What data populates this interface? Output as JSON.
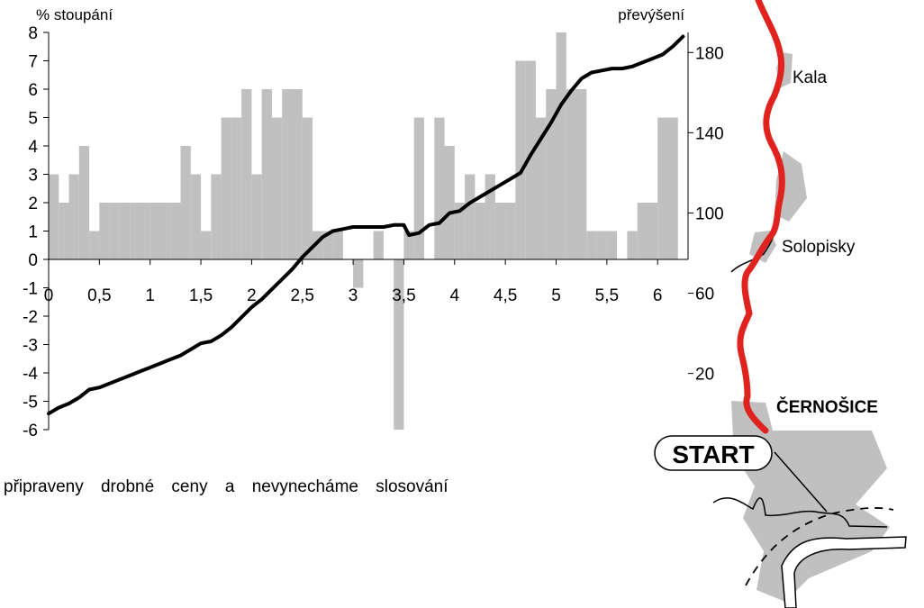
{
  "chart_data": {
    "type": "bar+line",
    "xlabel": "",
    "y_left_label": "% stoupání",
    "y_right_label": "převýšení",
    "x_ticks": [
      "0",
      "0,5",
      "1",
      "1,5",
      "2",
      "2,5",
      "3",
      "3,5",
      "4",
      "4,5",
      "5",
      "5,5",
      "6"
    ],
    "y_left_ticks": [
      "8",
      "7",
      "6",
      "5",
      "4",
      "3",
      "2",
      "1",
      "0",
      "-1",
      "-2",
      "-3",
      "-4",
      "-5",
      "-6"
    ],
    "y_right_ticks": [
      "180",
      "140",
      "100",
      "60",
      "20"
    ],
    "xlim": [
      0,
      6.3
    ],
    "y_left_lim": [
      -6,
      8
    ],
    "y_right_lim": [
      -8,
      190
    ],
    "bar_width": 0.1,
    "series": [
      {
        "kind": "bar",
        "color": "#c0c0c0",
        "x": [
          0.0,
          0.1,
          0.2,
          0.3,
          0.4,
          0.5,
          0.6,
          0.7,
          0.8,
          0.9,
          1.0,
          1.1,
          1.2,
          1.3,
          1.4,
          1.5,
          1.6,
          1.7,
          1.8,
          1.9,
          2.0,
          2.1,
          2.2,
          2.3,
          2.4,
          2.5,
          2.6,
          2.7,
          2.8,
          2.9,
          3.0,
          3.1,
          3.2,
          3.3,
          3.4,
          3.5,
          3.6,
          3.7,
          3.8,
          3.9,
          4.0,
          4.1,
          4.2,
          4.3,
          4.4,
          4.5,
          4.6,
          4.7,
          4.8,
          4.9,
          5.0,
          5.1,
          5.2,
          5.3,
          5.4,
          5.5,
          5.6,
          5.7,
          5.8,
          5.9,
          6.0,
          6.1,
          6.2
        ],
        "values": [
          3,
          2,
          3,
          4,
          1,
          2,
          2,
          2,
          2,
          2,
          2,
          2,
          2,
          4,
          3,
          1,
          3,
          5,
          5,
          6,
          3,
          6,
          5,
          6,
          6,
          5,
          1,
          1,
          1,
          0,
          -1,
          0,
          1,
          0,
          -6,
          1,
          5,
          0,
          5,
          4,
          2,
          3,
          2,
          3,
          2,
          2,
          7,
          7,
          5,
          6,
          8,
          6,
          6,
          1,
          1,
          1,
          0,
          1,
          2,
          2,
          5,
          5,
          0
        ]
      },
      {
        "kind": "line",
        "color": "#000000",
        "axis": "right",
        "x": [
          0.0,
          0.1,
          0.2,
          0.3,
          0.4,
          0.5,
          0.6,
          0.7,
          0.8,
          0.9,
          1.0,
          1.1,
          1.2,
          1.3,
          1.4,
          1.5,
          1.6,
          1.7,
          1.8,
          1.9,
          2.0,
          2.1,
          2.2,
          2.3,
          2.4,
          2.5,
          2.6,
          2.7,
          2.8,
          2.9,
          3.0,
          3.1,
          3.2,
          3.3,
          3.4,
          3.5,
          3.55,
          3.65,
          3.75,
          3.85,
          3.95,
          4.05,
          4.15,
          4.25,
          4.35,
          4.45,
          4.55,
          4.65,
          4.75,
          4.85,
          4.95,
          5.05,
          5.15,
          5.25,
          5.35,
          5.45,
          5.55,
          5.65,
          5.75,
          5.85,
          5.95,
          6.05,
          6.15,
          6.25
        ],
        "values": [
          0,
          3,
          5,
          8,
          12,
          13,
          15,
          17,
          19,
          21,
          23,
          25,
          27,
          29,
          32,
          35,
          36,
          39,
          43,
          48,
          53,
          57,
          62,
          67,
          72,
          78,
          83,
          88,
          91,
          92,
          93,
          93,
          93,
          93,
          94,
          94,
          89,
          90,
          94,
          95,
          100,
          101,
          105,
          108,
          111,
          114,
          117,
          120,
          129,
          137,
          145,
          154,
          161,
          167,
          170,
          171,
          172,
          172,
          173,
          175,
          177,
          179,
          183,
          188
        ]
      }
    ]
  },
  "map": {
    "places": [
      "Kala",
      "Solopisky"
    ],
    "town": "ČERNOŠICE",
    "start_label": "START",
    "route_color": "#e0231e",
    "area_color": "#c0c0c0"
  },
  "footer": {
    "text": "připraveny drobné ceny a nevynecháme slosování"
  }
}
